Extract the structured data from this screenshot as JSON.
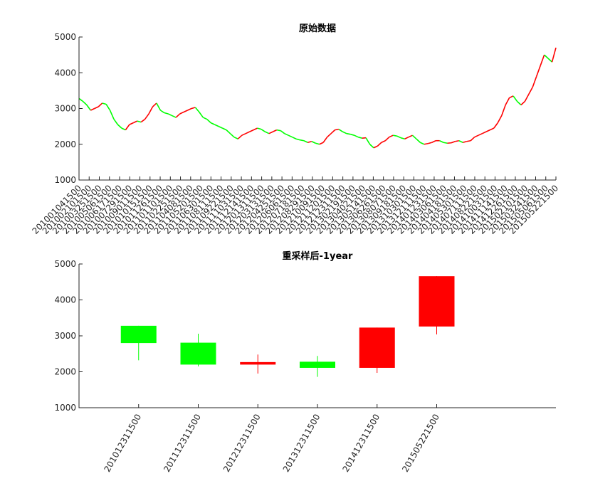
{
  "colors": {
    "up": "#ff0000",
    "down": "#00ff00",
    "axis": "#262626"
  },
  "chart_data": [
    {
      "type": "line",
      "title": "原始数据",
      "ylim": [
        1000,
        5000
      ],
      "yticks": [
        1000,
        2000,
        3000,
        4000,
        5000
      ],
      "x_tick_labels": [
        "201001041500",
        "201002101500",
        "201003251500",
        "201005061500",
        "201006171500",
        "201007291500",
        "201009011500",
        "201010151500",
        "201011261500",
        "201101101500",
        "201102251500",
        "201104081500",
        "201105201500",
        "201106301500",
        "201108111500",
        "201109221500",
        "201111031500",
        "201112141500",
        "201201311500",
        "201203131500",
        "201204251500",
        "201206061500",
        "201207181500",
        "201208291500",
        "201210091500",
        "201211201500",
        "201212311500",
        "201302191500",
        "201304021500",
        "201305141500",
        "201306261500",
        "201308071500",
        "201309181500",
        "201310301500",
        "201312111500",
        "201401231500",
        "201403061500",
        "201404181500",
        "201405301500",
        "201407111500",
        "201408221500",
        "201410031500",
        "201411141500",
        "201412261500",
        "201502101500",
        "201503241500",
        "201505061500",
        "201505221500"
      ],
      "series": [
        {
          "values": [
            3280,
            3200,
            3100,
            2950,
            3000,
            3050,
            3150,
            3120,
            2950,
            2700,
            2550,
            2450,
            2400,
            2550,
            2600,
            2650,
            2620,
            2700,
            2850,
            3050,
            3150,
            2950,
            2880,
            2850,
            2800,
            2750,
            2850,
            2900,
            2950,
            3000,
            3030,
            2900,
            2750,
            2700,
            2600,
            2550,
            2500,
            2450,
            2400,
            2300,
            2200,
            2150,
            2250,
            2300,
            2350,
            2400,
            2450,
            2420,
            2350,
            2300,
            2350,
            2400,
            2380,
            2300,
            2250,
            2200,
            2150,
            2120,
            2100,
            2050,
            2080,
            2030,
            2000,
            2050,
            2200,
            2300,
            2400,
            2420,
            2350,
            2300,
            2280,
            2250,
            2200,
            2170,
            2180,
            2000,
            1900,
            1950,
            2050,
            2100,
            2200,
            2250,
            2230,
            2180,
            2150,
            2200,
            2250,
            2150,
            2050,
            2000,
            2020,
            2050,
            2100,
            2100,
            2050,
            2030,
            2040,
            2080,
            2100,
            2050,
            2080,
            2100,
            2200,
            2250,
            2300,
            2350,
            2400,
            2450,
            2600,
            2800,
            3100,
            3300,
            3350,
            3200,
            3100,
            3200,
            3400,
            3600,
            3900,
            4200,
            4500,
            4400,
            4300,
            4700
          ]
        }
      ]
    },
    {
      "type": "candlestick",
      "title": "重采样后-1year",
      "ylim": [
        1000,
        5000
      ],
      "yticks": [
        1000,
        2000,
        3000,
        4000,
        5000
      ],
      "categories": [
        "201012311500",
        "201112311500",
        "201212311500",
        "201312311500",
        "201412311500",
        "201505221500"
      ],
      "candles": [
        {
          "open": 3280,
          "close": 2800,
          "high": 3280,
          "low": 2320
        },
        {
          "open": 2810,
          "close": 2200,
          "high": 3060,
          "low": 2150
        },
        {
          "open": 2200,
          "close": 2270,
          "high": 2480,
          "low": 1950
        },
        {
          "open": 2280,
          "close": 2110,
          "high": 2440,
          "low": 1860
        },
        {
          "open": 2110,
          "close": 3230,
          "high": 3230,
          "low": 1970
        },
        {
          "open": 3260,
          "close": 4660,
          "high": 4660,
          "low": 3040
        }
      ]
    }
  ]
}
